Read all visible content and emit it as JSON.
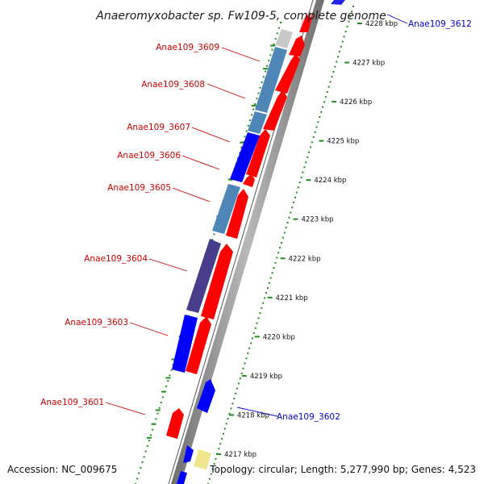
{
  "title": "Anaeromyxobacter sp. Fw109-5, complete genome",
  "footer": {
    "accession": "Accession: NC_009675",
    "topology": "Topology: circular; Length: 5,277,990 bp; Genes: 4,523"
  },
  "colors": {
    "forward_strand": "#ff0000",
    "reverse_blue": "#0000ff",
    "reverse_steel": "#4682b4",
    "reverse_purple": "#483d8b",
    "reverse_gray": "#c0c0c0",
    "reverse_pink": "#ffb6c1",
    "reverse_yellow": "#f0e68c",
    "backbone": "#808080",
    "gc_ticks": "#228b22",
    "label_forward": "#cc0000",
    "label_reverse": "#0000cc"
  },
  "ruler": {
    "unit": "kbp",
    "ticks": [
      "4217 kbp",
      "4218 kbp",
      "4219 kbp",
      "4220 kbp",
      "4221 kbp",
      "4222 kbp",
      "4223 kbp",
      "4224 kbp",
      "4225 kbp",
      "4226 kbp",
      "4227 kbp",
      "4228 kbp"
    ]
  },
  "gene_labels": [
    {
      "id": "g3609",
      "text": "Anae109_3609",
      "strand": "reverse"
    },
    {
      "id": "g3608",
      "text": "Anae109_3608",
      "strand": "reverse"
    },
    {
      "id": "g3607",
      "text": "Anae109_3607",
      "strand": "reverse"
    },
    {
      "id": "g3606",
      "text": "Anae109_3606",
      "strand": "reverse"
    },
    {
      "id": "g3605",
      "text": "Anae109_3605",
      "strand": "reverse"
    },
    {
      "id": "g3604",
      "text": "Anae109_3604",
      "strand": "reverse"
    },
    {
      "id": "g3603",
      "text": "Anae109_3603",
      "strand": "reverse"
    },
    {
      "id": "g3601",
      "text": "Anae109_3601",
      "strand": "reverse"
    },
    {
      "id": "g3612",
      "text": "Anae109_3612",
      "strand": "forward"
    },
    {
      "id": "g3602",
      "text": "Anae109_3602",
      "strand": "forward"
    }
  ]
}
